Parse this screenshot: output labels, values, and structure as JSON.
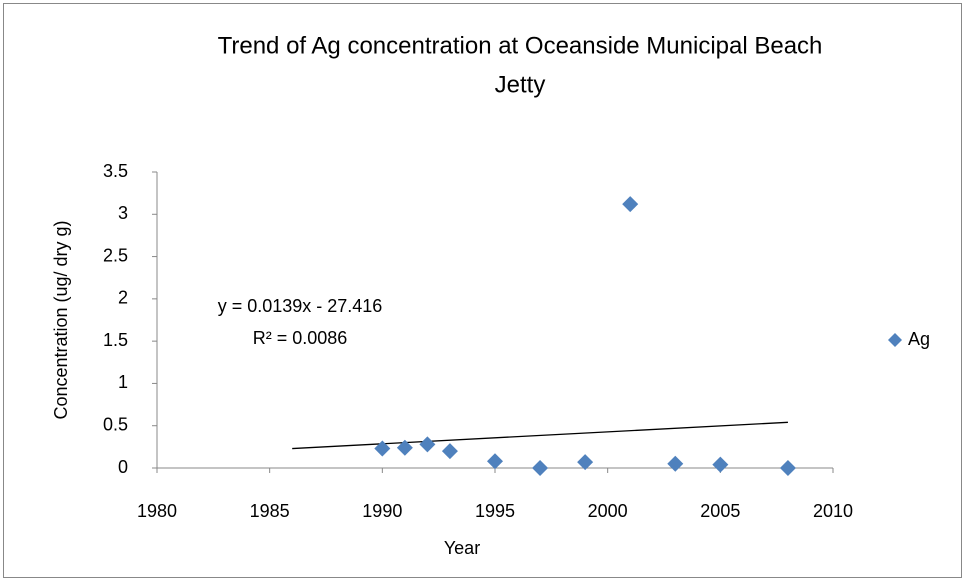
{
  "chart_data": {
    "type": "scatter",
    "title": [
      "Trend of Ag concentration at Oceanside Municipal Beach",
      "Jetty"
    ],
    "x_label": "Year",
    "y_label": "Concentration (ug/ dry g)",
    "series": [
      {
        "name": "Ag",
        "color": "#4f81bd",
        "x": [
          1990,
          1991,
          1992,
          1993,
          1995,
          1997,
          1999,
          2001,
          2003,
          2005,
          2008
        ],
        "values": [
          0.23,
          0.24,
          0.28,
          0.2,
          0.08,
          0,
          0.07,
          3.12,
          0.05,
          0.04,
          0
        ]
      }
    ],
    "trendline": {
      "x": [
        1986,
        2008
      ],
      "values": [
        0.23,
        0.54
      ],
      "color": "#000000",
      "equation": "y = 0.0139x - 27.416",
      "r_squared": "R² = 0.0086"
    },
    "xlim": [
      1980,
      2010
    ],
    "xticks": [
      1980,
      1985,
      1990,
      1995,
      2000,
      2005,
      2010
    ],
    "ylim": [
      0,
      3.5
    ],
    "yticks": [
      0,
      0.5,
      1,
      1.5,
      2,
      2.5,
      3,
      3.5
    ],
    "legend": "right",
    "grid": false
  }
}
